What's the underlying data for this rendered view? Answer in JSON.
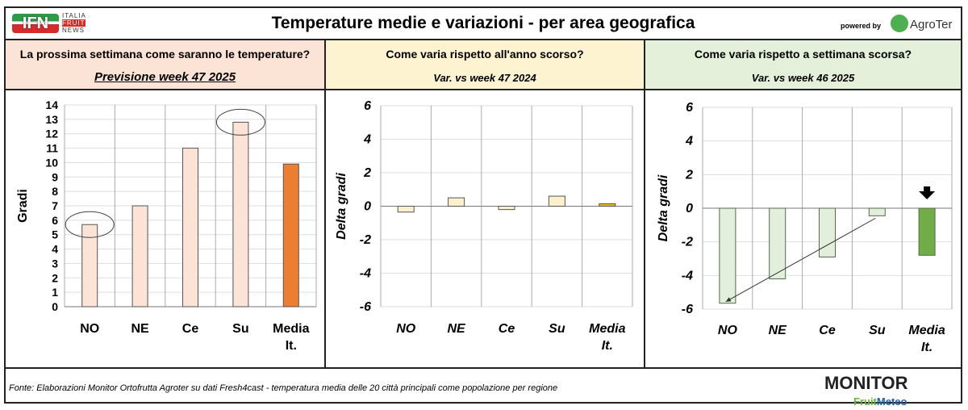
{
  "header": {
    "title": "Temperature medie e variazioni - per area geografica",
    "logo_left": "IFN ITALIA FRUIT NEWS",
    "powered_by": "powered by",
    "logo_right": "AgroTer"
  },
  "panels": [
    {
      "question": "La prossima settimana come saranno le temperature?",
      "subtitle": "Previsione week 47 2025",
      "bg": "#fbe3d6"
    },
    {
      "question": "Come varia rispetto all'anno scorso?",
      "subtitle": "Var. vs week 47 2024",
      "bg": "#fdf3d0"
    },
    {
      "question": "Come varia rispetto a settimana scorsa?",
      "subtitle": "Var. vs week 46 2025",
      "bg": "#e4f0da"
    }
  ],
  "chart_data": [
    {
      "type": "bar",
      "categories": [
        "NO",
        "NE",
        "Ce",
        "Su",
        "Media It."
      ],
      "values": [
        5.7,
        7.0,
        11.0,
        12.8,
        9.9
      ],
      "ylabel": "Gradi",
      "ylim": [
        0,
        14
      ],
      "yticks": [
        0,
        1,
        2,
        3,
        4,
        5,
        6,
        7,
        8,
        9,
        10,
        11,
        12,
        13,
        14
      ],
      "colors": [
        "#fbe3d6",
        "#fbe3d6",
        "#fbe3d6",
        "#fbe3d6",
        "#ed7d31"
      ],
      "annotations": "circles on NO and Su"
    },
    {
      "type": "bar",
      "categories": [
        "NO",
        "NE",
        "Ce",
        "Su",
        "Media It."
      ],
      "values": [
        -0.35,
        0.5,
        -0.2,
        0.6,
        0.15
      ],
      "ylabel": "Delta gradi",
      "ylim": [
        -6,
        6
      ],
      "yticks": [
        -6,
        -4,
        -2,
        0,
        2,
        4,
        6
      ],
      "colors": [
        "#fdf0cc",
        "#fdf0cc",
        "#fdf0cc",
        "#fdf0cc",
        "#f2b705"
      ]
    },
    {
      "type": "bar",
      "categories": [
        "NO",
        "NE",
        "Ce",
        "Su",
        "Media It."
      ],
      "values": [
        -5.65,
        -4.2,
        -2.9,
        -0.45,
        -2.8
      ],
      "ylabel": "Delta gradi",
      "ylim": [
        -6,
        6
      ],
      "yticks": [
        -6,
        -4,
        -2,
        0,
        2,
        4,
        6
      ],
      "colors": [
        "#e2efda",
        "#e2efda",
        "#e2efda",
        "#e2efda",
        "#70ad47"
      ],
      "annotations": "arrow from Su to NO; down arrow above Media It."
    }
  ],
  "footer": {
    "source": "Fonte: Elaborazioni Monitor Ortofrutta Agroter su dati Fresh4cast - temperatura media delle 20 città principali come popolazione per regione",
    "logo": "MONITOR FruitMeteo"
  }
}
